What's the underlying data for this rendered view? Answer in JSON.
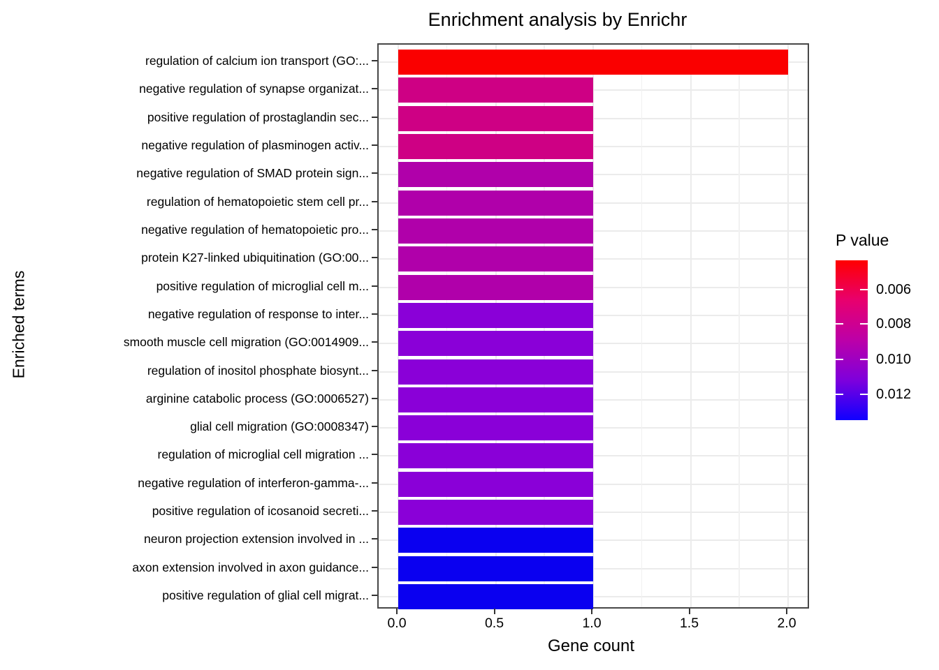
{
  "chart": {
    "title": "Enrichment analysis by Enrichr",
    "xlabel": "Gene count",
    "ylabel": "Enriched terms",
    "x_tick_labels": [
      "0.0",
      "0.5",
      "1.0",
      "1.5",
      "2.0"
    ]
  },
  "legend": {
    "title": "P value",
    "tick_labels": [
      "0.006",
      "0.008",
      "0.010",
      "0.012"
    ],
    "tick_positions_pct": [
      18.3,
      39.7,
      62.0,
      83.8
    ],
    "gradient_stops": [
      "#ff0000",
      "#e8006e",
      "#bc00a8",
      "#7e00dc",
      "#1000ff"
    ]
  },
  "chart_data": {
    "type": "bar",
    "orientation": "horizontal",
    "title": "Enrichment analysis by Enrichr",
    "xlabel": "Gene count",
    "ylabel": "Enriched terms",
    "xlim": [
      0,
      2.2
    ],
    "x_tick_values": [
      0,
      0.5,
      1.0,
      1.5,
      2.0
    ],
    "grid": true,
    "legend_position": "right",
    "color_scale": {
      "name": "P value",
      "low_value_color": "#ff0000",
      "high_value_color": "#0000ff",
      "tick_values": [
        0.006,
        0.008,
        0.01,
        0.012
      ]
    },
    "bars": [
      {
        "label": "regulation of calcium ion transport (GO:...",
        "value": 2,
        "color": "#fa0000",
        "p_value_estimate": 0.005
      },
      {
        "label": "negative regulation of synapse organizat...",
        "value": 1,
        "color": "#ce0084",
        "p_value_estimate": 0.008
      },
      {
        "label": "positive regulation of prostaglandin sec...",
        "value": 1,
        "color": "#ce0084",
        "p_value_estimate": 0.008
      },
      {
        "label": "negative regulation of plasminogen activ...",
        "value": 1,
        "color": "#ce0084",
        "p_value_estimate": 0.008
      },
      {
        "label": "negative regulation of SMAD protein sign...",
        "value": 1,
        "color": "#b000aa",
        "p_value_estimate": 0.0095
      },
      {
        "label": "regulation of hematopoietic stem cell pr...",
        "value": 1,
        "color": "#b000aa",
        "p_value_estimate": 0.0095
      },
      {
        "label": "negative regulation of hematopoietic pro...",
        "value": 1,
        "color": "#b000aa",
        "p_value_estimate": 0.0095
      },
      {
        "label": "protein K27-linked ubiquitination (GO:00...",
        "value": 1,
        "color": "#b000aa",
        "p_value_estimate": 0.0095
      },
      {
        "label": "positive regulation of microglial cell m...",
        "value": 1,
        "color": "#b000aa",
        "p_value_estimate": 0.0095
      },
      {
        "label": "negative regulation of response to inter...",
        "value": 1,
        "color": "#8a00d8",
        "p_value_estimate": 0.011
      },
      {
        "label": "smooth muscle cell migration (GO:0014909...",
        "value": 1,
        "color": "#8a00d8",
        "p_value_estimate": 0.011
      },
      {
        "label": "regulation of inositol phosphate biosynt...",
        "value": 1,
        "color": "#8a00d8",
        "p_value_estimate": 0.011
      },
      {
        "label": "arginine catabolic process (GO:0006527)",
        "value": 1,
        "color": "#8a00d8",
        "p_value_estimate": 0.011
      },
      {
        "label": "glial cell migration (GO:0008347)",
        "value": 1,
        "color": "#8a00d8",
        "p_value_estimate": 0.011
      },
      {
        "label": "regulation of microglial cell migration ...",
        "value": 1,
        "color": "#8a00d8",
        "p_value_estimate": 0.011
      },
      {
        "label": "negative regulation of interferon-gamma-...",
        "value": 1,
        "color": "#8a00d8",
        "p_value_estimate": 0.011
      },
      {
        "label": "positive regulation of icosanoid secreti...",
        "value": 1,
        "color": "#8a00d8",
        "p_value_estimate": 0.011
      },
      {
        "label": "neuron projection extension involved in ...",
        "value": 1,
        "color": "#0a00f0",
        "p_value_estimate": 0.013
      },
      {
        "label": "axon extension involved in axon guidance...",
        "value": 1,
        "color": "#0a00f0",
        "p_value_estimate": 0.013
      },
      {
        "label": "positive regulation of glial cell migrat...",
        "value": 1,
        "color": "#0a00f0",
        "p_value_estimate": 0.013
      }
    ]
  }
}
